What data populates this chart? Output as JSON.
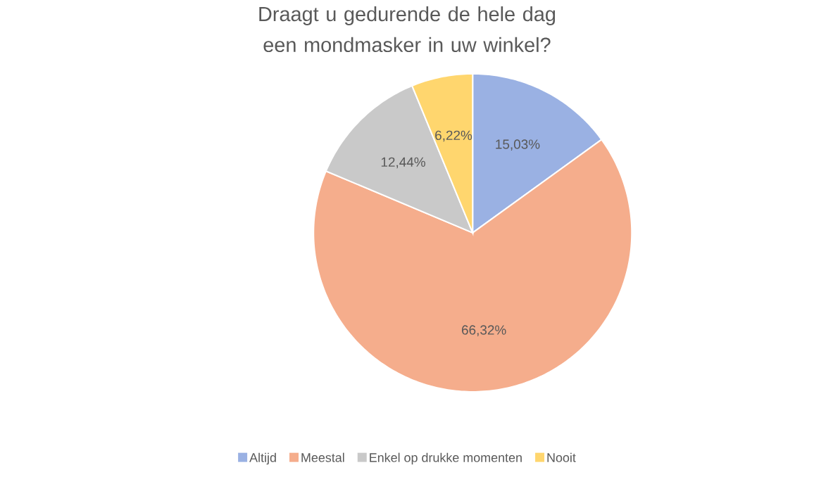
{
  "chart_data": {
    "type": "pie",
    "title": "Draagt u gedurende de hele dag een mondmasker in uw winkel?",
    "categories": [
      "Altijd",
      "Meestal",
      "Enkel op drukke momenten",
      "Nooit"
    ],
    "values": [
      15.03,
      66.32,
      12.44,
      6.22
    ],
    "value_labels": [
      "15,03%",
      "66,32%",
      "12,44%",
      "6,22%"
    ],
    "colors": [
      "#9AB1E3",
      "#F5AD8C",
      "#C9C9C9",
      "#FFD66E"
    ],
    "legend": "bottom"
  }
}
